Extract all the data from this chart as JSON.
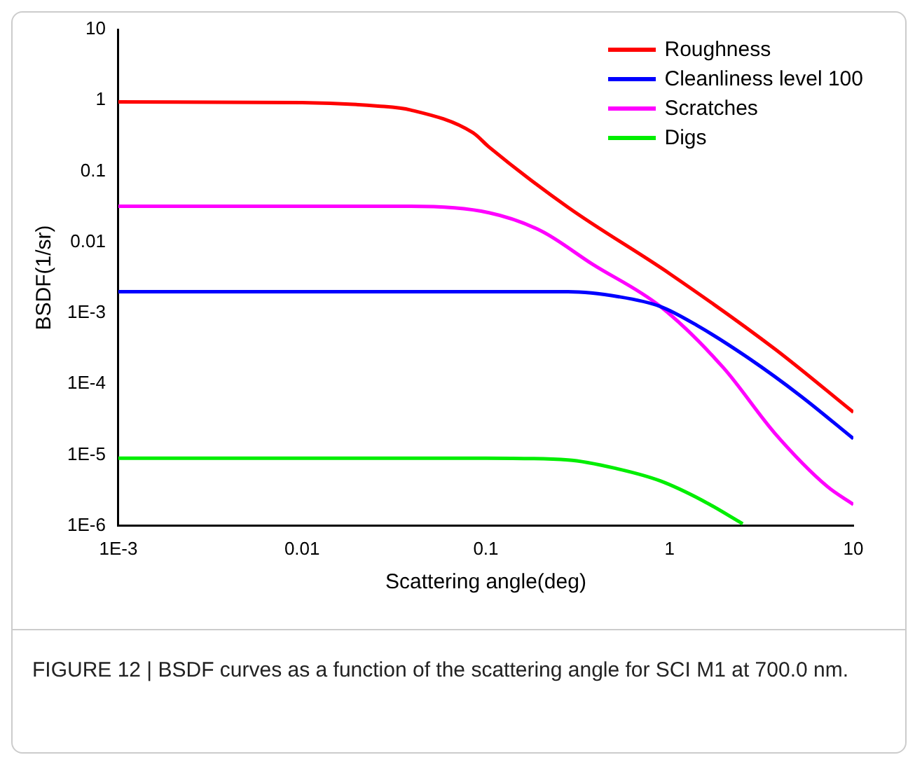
{
  "chart_data": {
    "type": "line",
    "xlabel": "Scattering angle(deg)",
    "ylabel": "BSDF(1/sr)",
    "log": "xy",
    "legend": "top right",
    "grid": false,
    "marker": "none",
    "line_style": "solid",
    "xlim": [
      0.001,
      10
    ],
    "xticks": [
      {
        "value": 0.001,
        "label": "1E-3"
      },
      0.01,
      0.1,
      1,
      10
    ],
    "ylim": [
      1e-06,
      10
    ],
    "yticks": [
      10,
      1,
      0.1,
      0.01,
      {
        "value": 0.001,
        "label": "1E-3"
      },
      {
        "value": 0.0001,
        "label": "1E-4"
      },
      {
        "value": 1e-05,
        "label": "1E-5"
      },
      {
        "value": 1e-06,
        "label": "1E-6"
      }
    ],
    "series": [
      {
        "name": "Roughness",
        "color": "#ff0000",
        "x": [
          0.001,
          0.01,
          0.026,
          0.039,
          0.085,
          0.104,
          0.28,
          1,
          3.75,
          10
        ],
        "values": [
          0.95,
          0.93,
          0.83,
          0.73,
          0.35,
          0.22,
          0.031,
          0.0036,
          0.00031,
          4e-05
        ]
      },
      {
        "name": "Cleanliness level 100",
        "color": "#0000ff",
        "x": [
          0.001,
          0.01,
          0.1,
          0.28,
          0.53,
          0.89,
          1.41,
          2.7,
          5.2,
          10
        ],
        "values": [
          0.002,
          0.002,
          0.002,
          0.002,
          0.0017,
          0.00124,
          0.00067,
          0.00023,
          6.7e-05,
          1.7e-05
        ]
      },
      {
        "name": "Scratches",
        "color": "#ff00ff",
        "x": [
          0.001,
          0.01,
          0.039,
          0.104,
          0.2,
          0.38,
          0.89,
          1.96,
          3.75,
          7.2,
          10
        ],
        "values": [
          0.032,
          0.032,
          0.032,
          0.026,
          0.0144,
          0.0049,
          0.00124,
          0.00017,
          2e-05,
          3.6e-06,
          2e-06
        ]
      },
      {
        "name": "Digs",
        "color": "#00ee00",
        "x": [
          0.001,
          0.01,
          0.1,
          0.28,
          0.53,
          0.89,
          1.5,
          2.5
        ],
        "values": [
          9e-06,
          9e-06,
          9e-06,
          8.5e-06,
          6.3e-06,
          4.3e-06,
          2.3e-06,
          1.07e-06
        ]
      }
    ],
    "annotations": [
      "FIGURE 12 | BSDF curves as a function of the scattering angle for SCI M1 at 700.0 nm."
    ]
  }
}
